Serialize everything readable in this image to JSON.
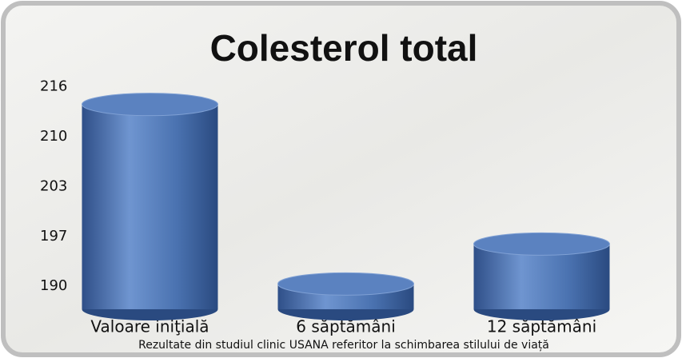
{
  "chart_data": {
    "type": "bar",
    "title": "Colesterol total",
    "categories": [
      "Valoare iniţială",
      "6 săptămâni",
      "12 săptămâni"
    ],
    "values": [
      213.7,
      190.3,
      195.5
    ],
    "color": "#4a72b0",
    "ylim": [
      187,
      217
    ],
    "yticks": [
      190,
      {
        "value": 196.5,
        "label": "197"
      },
      203,
      {
        "value": 209.5,
        "label": "210"
      },
      216
    ],
    "grid": false,
    "note": "Rezultate din studiul clinic USANA referitor la schimbarea stilului de viață"
  }
}
